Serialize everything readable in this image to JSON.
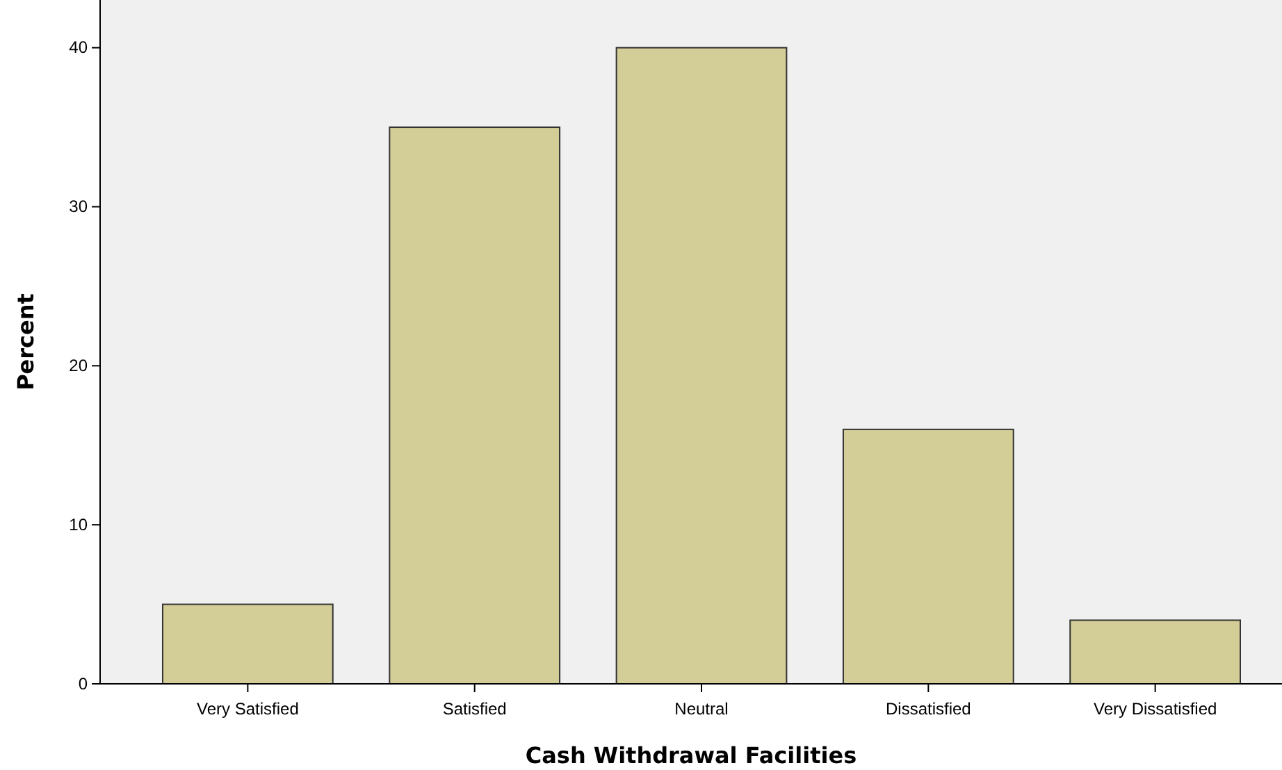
{
  "chart_data": {
    "type": "bar",
    "xlabel": "Cash Withdrawal Facilities",
    "ylabel": "Percent",
    "categories": [
      "Very Satisfied",
      "Satisfied",
      "Neutral",
      "Dissatisfied",
      "Very Dissatisfied"
    ],
    "values": [
      5,
      35,
      40,
      16,
      4
    ],
    "color": "#d3ce97",
    "ylim": [
      0,
      43
    ],
    "yticks": [
      0,
      10,
      20,
      30,
      40
    ],
    "grid": false
  }
}
